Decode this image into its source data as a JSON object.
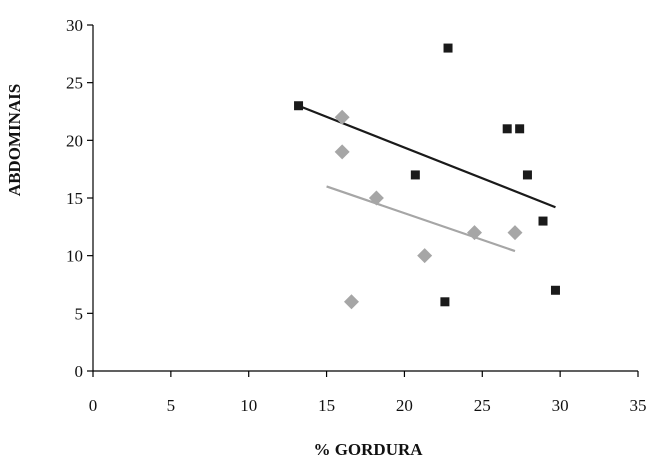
{
  "chart_data": {
    "type": "scatter",
    "title": "",
    "xlabel": "% GORDURA",
    "ylabel": "ABDOMINAIS",
    "xlim": [
      0,
      35
    ],
    "ylim": [
      0,
      30
    ],
    "xticks": [
      0,
      5,
      10,
      15,
      20,
      25,
      30,
      35
    ],
    "yticks": [
      0,
      5,
      10,
      15,
      20,
      25,
      30
    ],
    "grid": false,
    "legend": "none",
    "series": [
      {
        "marker": "square",
        "color": "#1a1a1a",
        "points": [
          {
            "x": 13.2,
            "y": 23
          },
          {
            "x": 20.7,
            "y": 17
          },
          {
            "x": 22.6,
            "y": 6
          },
          {
            "x": 22.8,
            "y": 28
          },
          {
            "x": 26.6,
            "y": 21
          },
          {
            "x": 27.4,
            "y": 21
          },
          {
            "x": 27.9,
            "y": 17
          },
          {
            "x": 28.9,
            "y": 13
          },
          {
            "x": 29.7,
            "y": 7
          }
        ],
        "trendline": {
          "x": [
            13.2,
            29.7
          ],
          "y": [
            23,
            14.2
          ]
        }
      },
      {
        "marker": "diamond",
        "color": "#a6a6a6",
        "points": [
          {
            "x": 16.0,
            "y": 22
          },
          {
            "x": 16.0,
            "y": 19
          },
          {
            "x": 16.6,
            "y": 6
          },
          {
            "x": 18.2,
            "y": 15
          },
          {
            "x": 21.3,
            "y": 10
          },
          {
            "x": 24.5,
            "y": 12
          },
          {
            "x": 27.1,
            "y": 12
          }
        ],
        "trendline": {
          "x": [
            15.0,
            27.1
          ],
          "y": [
            16.0,
            10.4
          ]
        }
      }
    ]
  }
}
